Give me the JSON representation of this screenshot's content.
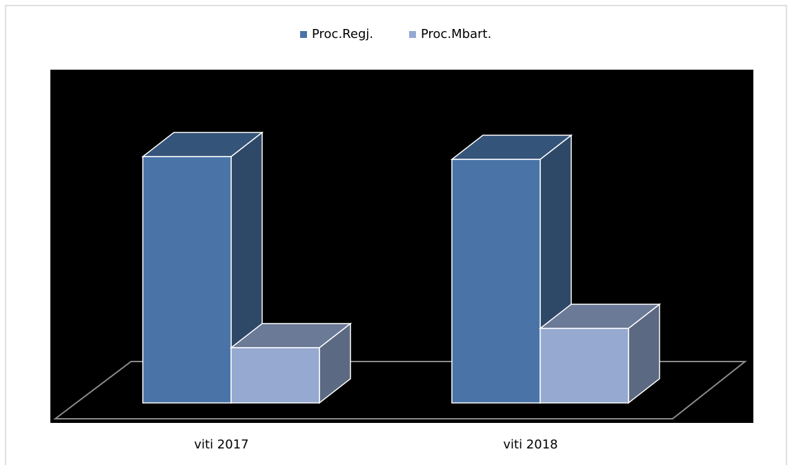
{
  "chart_data": {
    "type": "bar3d",
    "categories": [
      "viti 2017",
      "viti 2018"
    ],
    "series": [
      {
        "name": "Proc.Regj.",
        "color": "#4a74a8",
        "values": [
          357,
          353
        ]
      },
      {
        "name": "Proc.Mbart.",
        "color": "#95a9d1",
        "values": [
          80,
          108
        ]
      }
    ],
    "legend": "top"
  }
}
